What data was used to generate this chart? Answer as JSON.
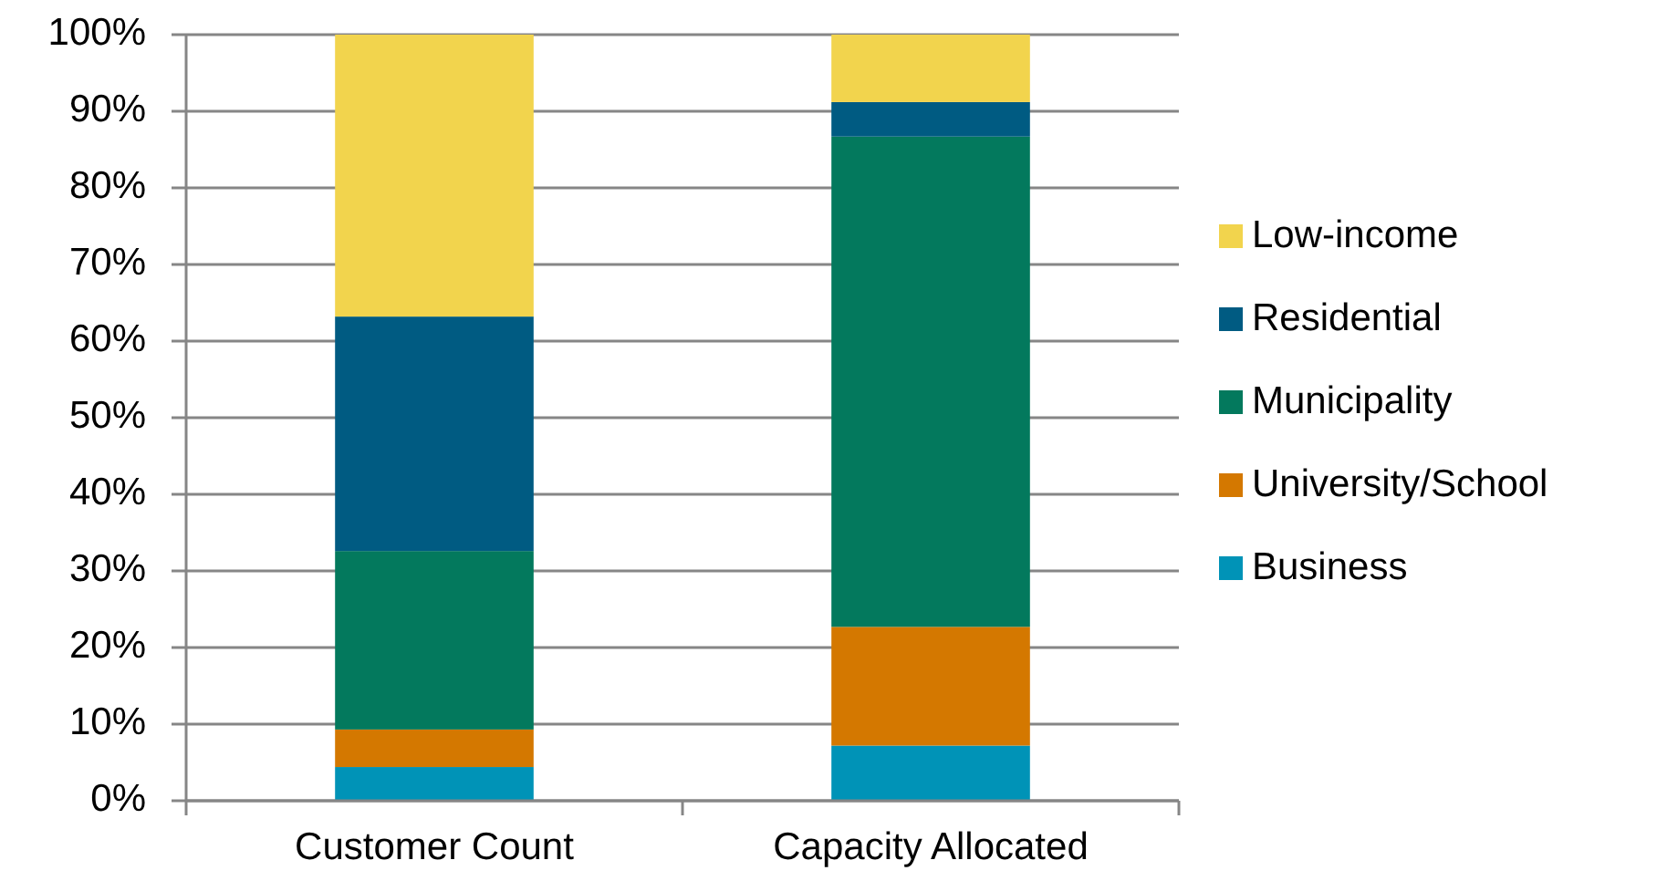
{
  "chart_data": {
    "type": "bar",
    "stacked": true,
    "categories": [
      "Customer Count",
      "Capacity Allocated"
    ],
    "series": [
      {
        "name": "Business",
        "color": "#0093b7",
        "values": [
          4.4,
          7.2
        ]
      },
      {
        "name": "University/School",
        "color": "#d47800",
        "values": [
          4.9,
          15.5
        ]
      },
      {
        "name": "Municipality",
        "color": "#03795d",
        "values": [
          23.3,
          64
        ]
      },
      {
        "name": "Residential",
        "color": "#005b82",
        "values": [
          30.6,
          4.5
        ]
      },
      {
        "name": "Low-income",
        "color": "#f2d44d",
        "values": [
          36.8,
          8.8
        ]
      }
    ],
    "ylim": [
      0,
      100
    ],
    "yticks": [
      {
        "value": 0,
        "label": "0%"
      },
      {
        "value": 10,
        "label": "10%"
      },
      {
        "value": 20,
        "label": "20%"
      },
      {
        "value": 30,
        "label": "30%"
      },
      {
        "value": 40,
        "label": "40%"
      },
      {
        "value": 50,
        "label": "50%"
      },
      {
        "value": 60,
        "label": "60%"
      },
      {
        "value": 70,
        "label": "70%"
      },
      {
        "value": 80,
        "label": "80%"
      },
      {
        "value": 90,
        "label": "90%"
      },
      {
        "value": 100,
        "label": "100%"
      }
    ],
    "grid": "y",
    "legend": "right"
  }
}
